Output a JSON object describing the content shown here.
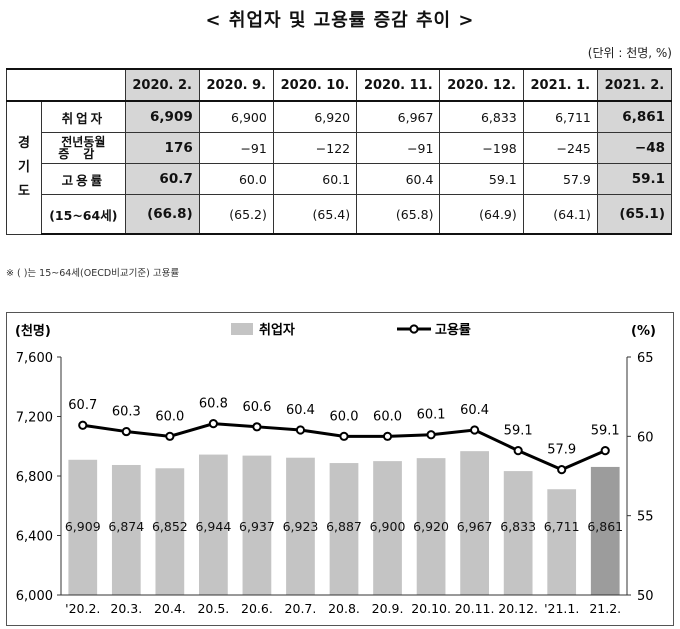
{
  "title": "< 취업자 및 고용률 증감 추이 >",
  "unit": "(단위 : 천명, %)",
  "table": {
    "region_label": "경기도",
    "columns": [
      "2020. 2.",
      "2020. 9.",
      "2020. 10.",
      "2020. 11.",
      "2020. 12.",
      "2021. 1.",
      "2021. 2."
    ],
    "rows": [
      {
        "label": "취업자",
        "values": [
          "6,909",
          "6,900",
          "6,920",
          "6,967",
          "6,833",
          "6,711",
          "6,861"
        ]
      },
      {
        "label_line1": "전년동월",
        "label_line2": "증감",
        "values": [
          "176",
          "−91",
          "−122",
          "−91",
          "−198",
          "−245",
          "−48"
        ]
      },
      {
        "label": "고용률",
        "values": [
          "60.7",
          "60.0",
          "60.1",
          "60.4",
          "59.1",
          "57.9",
          "59.1"
        ]
      },
      {
        "label": "(15~64세)",
        "values": [
          "(66.8)",
          "(65.2)",
          "(65.4)",
          "(65.8)",
          "(64.9)",
          "(64.1)",
          "(65.1)"
        ]
      }
    ]
  },
  "note": "※ ( )는 15~64세(OECD비교기준) 고용률",
  "chart_data": {
    "type": "bar",
    "categories": [
      "'20.2.",
      "20.3.",
      "20.4.",
      "20.5.",
      "20.6.",
      "20.7.",
      "20.8.",
      "20.9.",
      "20.10.",
      "20.11.",
      "20.12.",
      "'21.1.",
      "21.2."
    ],
    "series": [
      {
        "name": "취업자",
        "type": "bar",
        "axis": "left",
        "values": [
          6909,
          6874,
          6852,
          6944,
          6937,
          6923,
          6887,
          6900,
          6920,
          6967,
          6833,
          6711,
          6861
        ],
        "labels": [
          "6,909",
          "6,874",
          "6,852",
          "6,944",
          "6,937",
          "6,923",
          "6,887",
          "6,900",
          "6,920",
          "6,967",
          "6,833",
          "6,711",
          "6,861"
        ]
      },
      {
        "name": "고용률",
        "type": "line",
        "axis": "right",
        "values": [
          60.7,
          60.3,
          60.0,
          60.8,
          60.6,
          60.4,
          60.0,
          60.0,
          60.1,
          60.4,
          59.1,
          57.9,
          59.1
        ],
        "labels": [
          "60.7",
          "60.3",
          "60.0",
          "60.8",
          "60.6",
          "60.4",
          "60.0",
          "60.0",
          "60.1",
          "60.4",
          "59.1",
          "57.9",
          "59.1"
        ]
      }
    ],
    "left_axis": {
      "unit_label": "(천명)",
      "range": [
        6000,
        7600
      ],
      "ticks": [
        "6,000",
        "6,400",
        "6,800",
        "7,200",
        "7,600"
      ]
    },
    "right_axis": {
      "unit_label": "(%)",
      "range": [
        50,
        65
      ],
      "ticks": [
        "50",
        "55",
        "60",
        "65"
      ]
    },
    "highlight_last_bar": true,
    "colors": {
      "bar": "#c4c4c4",
      "bar_highlight": "#9c9c9c",
      "line": "#000000"
    }
  }
}
